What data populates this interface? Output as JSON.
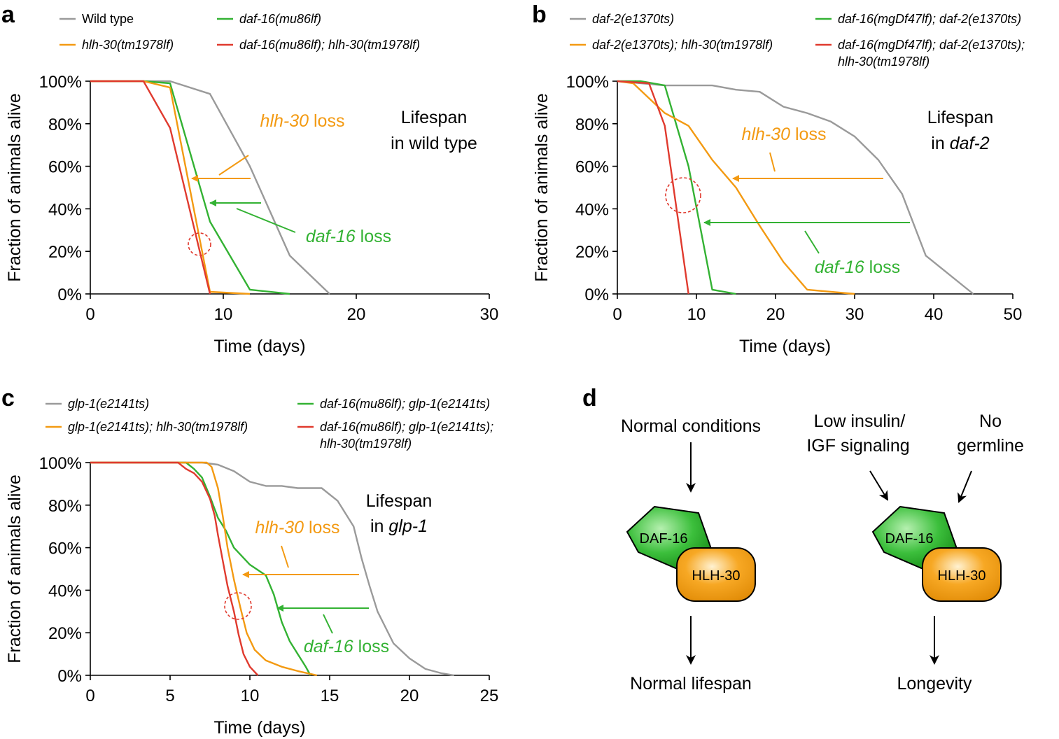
{
  "colors": {
    "wild": "#9a9a9a",
    "hlh30": "#f39a12",
    "daf16": "#33b233",
    "double": "#e03a2e",
    "black": "#000000"
  },
  "chart_data": [
    {
      "panel": "a",
      "type": "line",
      "xlabel": "Time (days)",
      "ylabel": "Fraction of animals alive",
      "xlim": [
        0,
        30
      ],
      "ylim": [
        0,
        100
      ],
      "xticks": [
        0,
        10,
        20,
        30
      ],
      "yticks": [
        0,
        20,
        40,
        60,
        80,
        100
      ],
      "ytick_labels": [
        "0%",
        "20%",
        "40%",
        "60%",
        "80%",
        "100%"
      ],
      "legend": [
        {
          "name": "Wild type",
          "italic": false,
          "color": "wild"
        },
        {
          "name": "daf-16(mu86lf)",
          "italic": true,
          "color": "daf16"
        },
        {
          "name": "hlh-30(tm1978lf)",
          "italic": true,
          "color": "hlh30"
        },
        {
          "name": "daf-16(mu86lf); hlh-30(tm1978lf)",
          "italic": true,
          "color": "double"
        }
      ],
      "series": [
        {
          "name": "Wild type",
          "color": "wild",
          "x": [
            0,
            4,
            6,
            9,
            12,
            15,
            18
          ],
          "y": [
            100,
            100,
            100,
            94,
            60,
            18,
            0
          ]
        },
        {
          "name": "daf-16(mu86lf)",
          "color": "daf16",
          "x": [
            0,
            4,
            6,
            9,
            12,
            15
          ],
          "y": [
            100,
            100,
            99,
            34,
            2,
            0
          ]
        },
        {
          "name": "hlh-30(tm1978lf)",
          "color": "hlh30",
          "x": [
            0,
            4,
            6,
            9,
            12
          ],
          "y": [
            100,
            100,
            97,
            1,
            0
          ]
        },
        {
          "name": "daf-16(mu86lf); hlh-30(tm1978lf)",
          "color": "double",
          "x": [
            0,
            4,
            6,
            9
          ],
          "y": [
            100,
            100,
            78,
            0
          ]
        }
      ],
      "annotations": {
        "title_line1": "Lifespan",
        "title_line2_plain": "in wild type",
        "title_line2_italic": "",
        "hlh_gene": "hlh-30",
        "hlh_word": " loss",
        "daf_gene": "daf-16",
        "daf_word": " loss"
      }
    },
    {
      "panel": "b",
      "type": "line",
      "xlabel": "Time (days)",
      "ylabel": "Fraction of animals alive",
      "xlim": [
        0,
        50
      ],
      "ylim": [
        0,
        100
      ],
      "xticks": [
        0,
        10,
        20,
        30,
        40,
        50
      ],
      "yticks": [
        0,
        20,
        40,
        60,
        80,
        100
      ],
      "ytick_labels": [
        "0%",
        "20%",
        "40%",
        "60%",
        "80%",
        "100%"
      ],
      "legend": [
        {
          "name": "daf-2(e1370ts)",
          "italic": true,
          "color": "wild"
        },
        {
          "name": "daf-16(mgDf47lf); daf-2(e1370ts)",
          "italic": true,
          "color": "daf16"
        },
        {
          "name": "daf-2(e1370ts); hlh-30(tm1978lf)",
          "italic": true,
          "color": "hlh30"
        },
        {
          "name": "daf-16(mgDf47lf); daf-2(e1370ts);",
          "name2": "hlh-30(tm1978lf)",
          "italic": true,
          "color": "double"
        }
      ],
      "series": [
        {
          "name": "daf-2(e1370ts)",
          "color": "wild",
          "x": [
            0,
            3,
            6,
            12,
            15,
            18,
            21,
            24,
            27,
            30,
            33,
            36,
            39,
            45
          ],
          "y": [
            100,
            99,
            98,
            98,
            96,
            95,
            88,
            85,
            81,
            74,
            63,
            47,
            18,
            0
          ]
        },
        {
          "name": "daf-16(mgDf47lf); daf-2(e1370ts)",
          "color": "daf16",
          "x": [
            0,
            3,
            6,
            9,
            12,
            15
          ],
          "y": [
            100,
            100,
            98,
            60,
            2,
            0
          ]
        },
        {
          "name": "daf-2(e1370ts); hlh-30(tm1978lf)",
          "color": "hlh30",
          "x": [
            0,
            2,
            6,
            9,
            12,
            15,
            18,
            21,
            24,
            30
          ],
          "y": [
            100,
            99,
            85,
            79,
            63,
            50,
            32,
            15,
            2,
            0
          ]
        },
        {
          "name": "daf-16(mgDf47lf); daf-2(e1370ts); hlh-30(tm1978lf)",
          "color": "double",
          "x": [
            0,
            4,
            6,
            9
          ],
          "y": [
            100,
            99,
            79,
            0
          ]
        }
      ],
      "annotations": {
        "title_line1": "Lifespan",
        "title_line2_plain": "in ",
        "title_line2_italic": "daf-2",
        "hlh_gene": "hlh-30",
        "hlh_word": " loss",
        "daf_gene": "daf-16",
        "daf_word": " loss"
      }
    },
    {
      "panel": "c",
      "type": "line",
      "xlabel": "Time (days)",
      "ylabel": "Fraction of animals alive",
      "xlim": [
        0,
        25
      ],
      "ylim": [
        0,
        100
      ],
      "xticks": [
        0,
        5,
        10,
        15,
        20,
        25
      ],
      "yticks": [
        0,
        20,
        40,
        60,
        80,
        100
      ],
      "ytick_labels": [
        "0%",
        "20%",
        "40%",
        "60%",
        "80%",
        "100%"
      ],
      "legend": [
        {
          "name": "glp-1(e2141ts)",
          "italic": true,
          "color": "wild"
        },
        {
          "name": "daf-16(mu86lf); glp-1(e2141ts)",
          "italic": true,
          "color": "daf16"
        },
        {
          "name": "glp-1(e2141ts); hlh-30(tm1978lf)",
          "italic": true,
          "color": "hlh30"
        },
        {
          "name": "daf-16(mu86lf); glp-1(e2141ts);",
          "name2": "hlh-30(tm1978lf)",
          "italic": true,
          "color": "double"
        }
      ],
      "series": [
        {
          "name": "glp-1(e2141ts)",
          "color": "wild",
          "x": [
            0,
            7,
            8,
            9,
            10,
            11,
            12,
            13,
            14.5,
            15.5,
            16.5,
            17,
            17.5,
            18,
            19,
            20,
            21,
            22,
            22.8
          ],
          "y": [
            100,
            100,
            99,
            96,
            91,
            89,
            89,
            88,
            88,
            82,
            70,
            55,
            42,
            30,
            15,
            8,
            3,
            1,
            0
          ]
        },
        {
          "name": "daf-16(mu86lf); glp-1(e2141ts)",
          "color": "daf16",
          "x": [
            0,
            6,
            6.5,
            7,
            7.5,
            8,
            8.5,
            9,
            10,
            11,
            11.5,
            12,
            12.5,
            13,
            13.5,
            13.8
          ],
          "y": [
            100,
            100,
            97,
            93,
            84,
            74,
            68,
            60,
            52,
            47,
            38,
            25,
            16,
            10,
            4,
            0
          ]
        },
        {
          "name": "glp-1(e2141ts); hlh-30(tm1978lf)",
          "color": "hlh30",
          "x": [
            0,
            7.3,
            7.6,
            8,
            8.3,
            8.6,
            9,
            9.4,
            9.8,
            10.3,
            11,
            12,
            13,
            14.2
          ],
          "y": [
            100,
            100,
            98,
            88,
            75,
            60,
            45,
            32,
            20,
            12,
            7,
            4,
            2,
            0
          ]
        },
        {
          "name": "daf-16(mu86lf); glp-1(e2141ts); hlh-30(tm1978lf)",
          "color": "double",
          "x": [
            0,
            5.5,
            6,
            6.5,
            7,
            7.5,
            7.8,
            8,
            8.3,
            8.6,
            9,
            9.3,
            9.6,
            10,
            10.5
          ],
          "y": [
            100,
            100,
            97,
            95,
            91,
            83,
            75,
            66,
            54,
            42,
            30,
            19,
            10,
            4,
            0
          ]
        }
      ],
      "annotations": {
        "title_line1": "Lifespan",
        "title_line2_plain": "in ",
        "title_line2_italic": "glp-1",
        "hlh_gene": "hlh-30",
        "hlh_word": " loss",
        "daf_gene": "daf-16",
        "daf_word": " loss"
      }
    }
  ],
  "panel_d": {
    "label": "d",
    "left_input": "Normal conditions",
    "left_output": "Normal lifespan",
    "right_input1_line1": "Low insulin/",
    "right_input1_line2": "IGF signaling",
    "right_input2_line1": "No",
    "right_input2_line2": "germline",
    "right_output": "Longevity",
    "protein1": "DAF-16",
    "protein2": "HLH-30"
  }
}
